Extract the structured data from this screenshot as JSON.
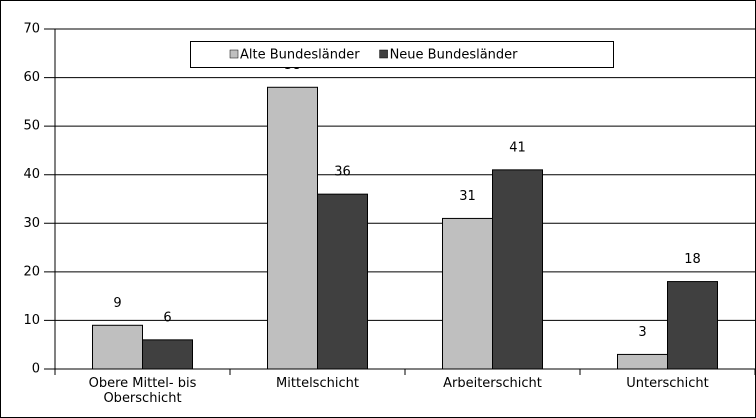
{
  "chart_data": {
    "type": "bar",
    "categories": [
      "Obere Mittel- bis Oberschicht",
      "Mittelschicht",
      "Arbeiterschicht",
      "Unterschicht"
    ],
    "series": [
      {
        "name": "Alte Bundesländer",
        "color": "#bfbfbf",
        "values": [
          9,
          58,
          31,
          3
        ]
      },
      {
        "name": "Neue Bundesländer",
        "color": "#404040",
        "values": [
          6,
          36,
          41,
          18
        ]
      }
    ],
    "ylim": [
      0,
      70
    ],
    "yticks": [
      0,
      10,
      20,
      30,
      40,
      50,
      60,
      70
    ],
    "grid": true,
    "legend": "top"
  }
}
